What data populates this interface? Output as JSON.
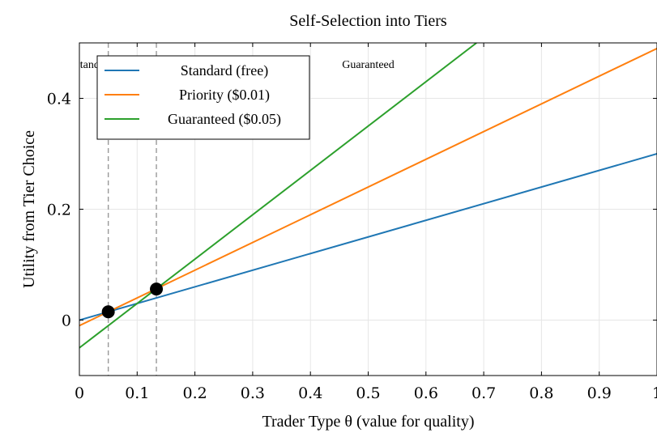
{
  "chart_data": {
    "type": "line",
    "title": "Self-Selection into Tiers",
    "xlabel": "Trader Type θ (value for quality)",
    "ylabel": "Utility from Tier Choice",
    "xlim": [
      0,
      1
    ],
    "ylim": [
      -0.1,
      0.5
    ],
    "x_ticks": [
      0,
      0.1,
      0.2,
      0.3,
      0.4,
      0.5,
      0.6,
      0.7,
      0.8,
      0.9,
      1
    ],
    "x_tick_labels": [
      "0",
      "0.1",
      "0.2",
      "0.3",
      "0.4",
      "0.5",
      "0.6",
      "0.7",
      "0.8",
      "0.9",
      "1"
    ],
    "y_ticks": [
      0,
      0.2,
      0.4
    ],
    "y_tick_labels": [
      "0",
      "0.2",
      "0.4"
    ],
    "grid": true,
    "legend_position": "top-left",
    "series": [
      {
        "name": "Standard (free)",
        "color": "#1f77b4",
        "x": [
          0,
          1
        ],
        "y": [
          0,
          0.3
        ]
      },
      {
        "name": "Priority ($0.01)",
        "color": "#ff7f0e",
        "x": [
          0,
          1
        ],
        "y": [
          -0.01,
          0.49
        ]
      },
      {
        "name": "Guaranteed ($0.05)",
        "color": "#2ca02c",
        "x": [
          0,
          0.6875
        ],
        "y": [
          -0.05,
          0.5
        ]
      }
    ],
    "thresholds": [
      0.05,
      0.1333
    ],
    "threshold_points": [
      {
        "x": 0.05,
        "y": 0.015
      },
      {
        "x": 0.1333,
        "y": 0.056
      }
    ],
    "region_labels": [
      {
        "text": "Standard",
        "x": 0.025
      },
      {
        "text": "Guaranteed",
        "x": 0.5
      }
    ]
  }
}
